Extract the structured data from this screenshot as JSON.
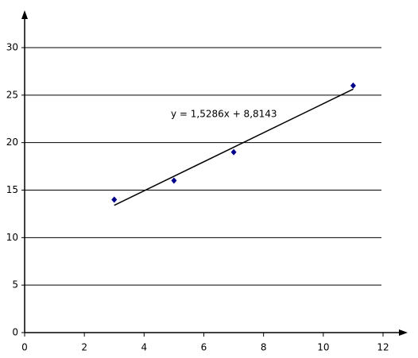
{
  "chart_data": {
    "type": "scatter",
    "x": [
      3,
      5,
      7,
      11
    ],
    "values": [
      14,
      16,
      19,
      26
    ],
    "color": "#00008b",
    "xlim": [
      0,
      12
    ],
    "xticks": [
      0,
      2,
      4,
      6,
      8,
      10,
      12
    ],
    "ylim": [
      0,
      30
    ],
    "yticks": [
      0,
      5,
      10,
      15,
      20,
      25,
      30
    ],
    "grid": true,
    "trendline": {
      "label": "y = 1,5286x + 8,8143",
      "slope": 1.5286,
      "intercept": 8.8143,
      "xrange": [
        3,
        11
      ]
    }
  }
}
